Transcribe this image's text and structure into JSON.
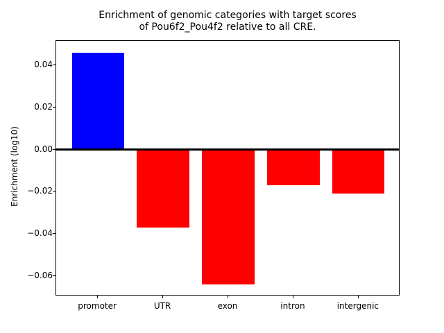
{
  "chart_data": {
    "type": "bar",
    "title_line1": "Enrichment of genomic categories with target scores",
    "title_line2": "of Pou6f2_Pou4f2 relative to all CRE.",
    "ylabel": "Enrichment (log10)",
    "xlabel": "",
    "categories": [
      "promoter",
      "UTR",
      "exon",
      "intron",
      "intergenic"
    ],
    "values": [
      0.046,
      -0.037,
      -0.064,
      -0.017,
      -0.021
    ],
    "bar_colors": [
      "#0000ff",
      "#ff0000",
      "#ff0000",
      "#ff0000",
      "#ff0000"
    ],
    "positive_color": "#0000ff",
    "negative_color": "#ff0000",
    "ylim": [
      -0.0695,
      0.0515
    ],
    "yticks": [
      0.04,
      0.02,
      0.0,
      -0.02,
      -0.04,
      -0.06
    ],
    "ytick_labels": [
      "0.04",
      "0.02",
      "0.00",
      "−0.02",
      "−0.04",
      "−0.06"
    ],
    "bar_width_fraction": 0.8,
    "zero_line": true,
    "grid": false,
    "legend": null
  }
}
